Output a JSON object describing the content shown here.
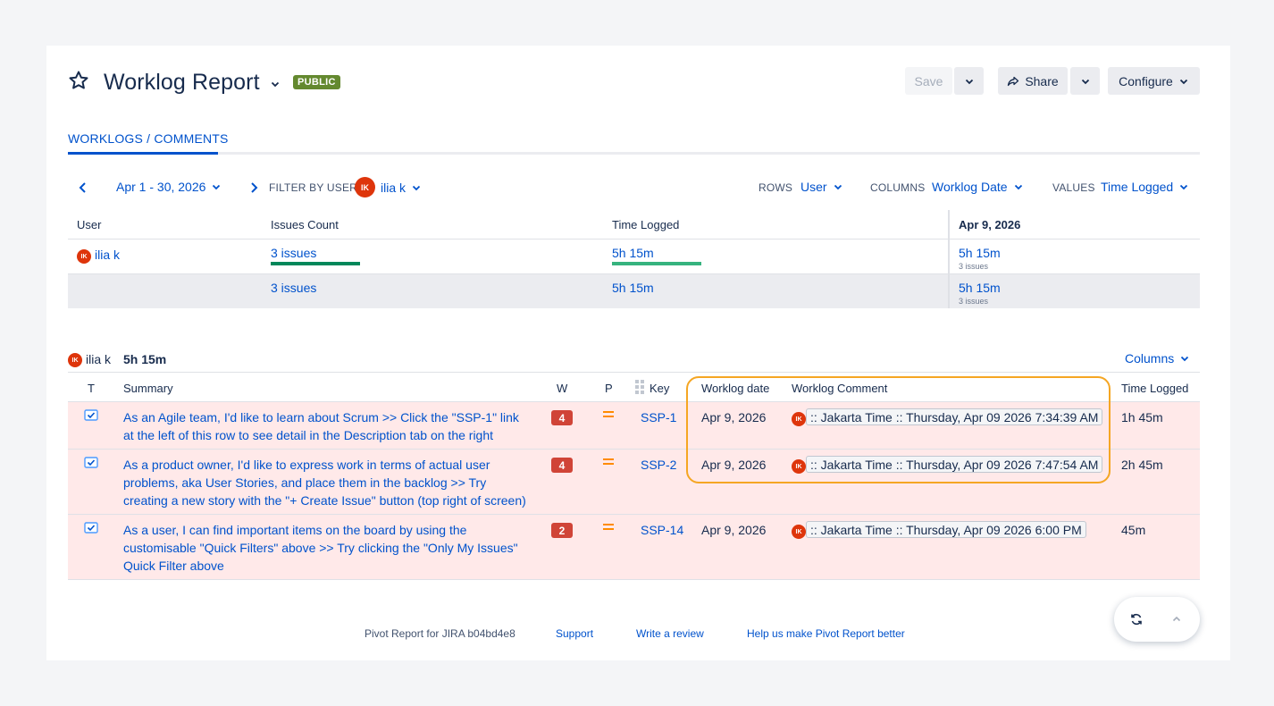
{
  "header": {
    "title": "Worklog Report",
    "badge": "PUBLIC",
    "save_label": "Save",
    "share_label": "Share",
    "configure_label": "Configure"
  },
  "tabs": [
    {
      "label": "WORKLOGS / COMMENTS",
      "active": true
    }
  ],
  "filters": {
    "date_range": "Apr 1 - 30, 2026",
    "filter_by_user_label": "FILTER BY USER",
    "user_initials": "IK",
    "user_name": "ilia k",
    "rows_label": "ROWS",
    "rows_value": "User",
    "columns_label": "COLUMNS",
    "columns_value": "Worklog Date",
    "values_label": "VALUES",
    "values_value": "Time Logged"
  },
  "pivot": {
    "headers": {
      "user": "User",
      "issues_count": "Issues Count",
      "time_logged": "Time Logged",
      "date_col": "Apr 9, 2026"
    },
    "row": {
      "initials": "IK",
      "user": "ilia k",
      "issues": "3 issues",
      "time": "5h 15m",
      "date_time": "5h 15m",
      "date_sub": "3 issues"
    },
    "total": {
      "issues": "3 issues",
      "time": "5h 15m",
      "date_time": "5h 15m",
      "date_sub": "3 issues"
    }
  },
  "detail": {
    "user_initials": "IK",
    "user_name": "ilia k",
    "user_total": "5h 15m",
    "columns_button": "Columns",
    "headers": {
      "t": "T",
      "summary": "Summary",
      "w": "W",
      "p": "P",
      "key": "Key",
      "worklog_date": "Worklog date",
      "worklog_comment": "Worklog Comment",
      "time_logged": "Time Logged"
    },
    "rows": [
      {
        "summary_lines": [
          "As an Agile team, I'd like to learn about Scrum >> Click the \"SSP-1\" link",
          "at the left of this row to see detail in the Description tab on the right"
        ],
        "w": "4",
        "key": "SSP-1",
        "date": "Apr 9, 2026",
        "initials": "IK",
        "comment": ":: Jakarta Time :: Thursday, Apr 09 2026 7:34:39 AM",
        "time": "1h 45m"
      },
      {
        "summary_lines": [
          "As a product owner, I'd like to express work in terms of actual user",
          "problems, aka User Stories, and place them in the backlog >> Try",
          "creating a new story with the \"+ Create Issue\" button (top right of screen)"
        ],
        "w": "4",
        "key": "SSP-2",
        "date": "Apr 9, 2026",
        "initials": "IK",
        "comment": ":: Jakarta Time :: Thursday, Apr 09 2026 7:47:54 AM",
        "time": "2h 45m"
      },
      {
        "summary_lines": [
          "As a user, I can find important items on the board by using the",
          "customisable \"Quick Filters\" above >> Try clicking the \"Only My Issues\"",
          "Quick Filter above"
        ],
        "w": "2",
        "key": "SSP-14",
        "date": "Apr 9, 2026",
        "initials": "IK",
        "comment": ":: Jakarta Time :: Thursday, Apr 09 2026 6:00 PM",
        "time": "45m"
      }
    ]
  },
  "footer": {
    "version": "Pivot Report for JIRA b04bd4e8",
    "support": "Support",
    "review": "Write a review",
    "help": "Help us make Pivot Report better"
  },
  "colors": {
    "accent": "#0052cc",
    "row_highlight": "#ffe9e9",
    "highlight_box": "#f5a623",
    "badge_green": "#64892f"
  }
}
